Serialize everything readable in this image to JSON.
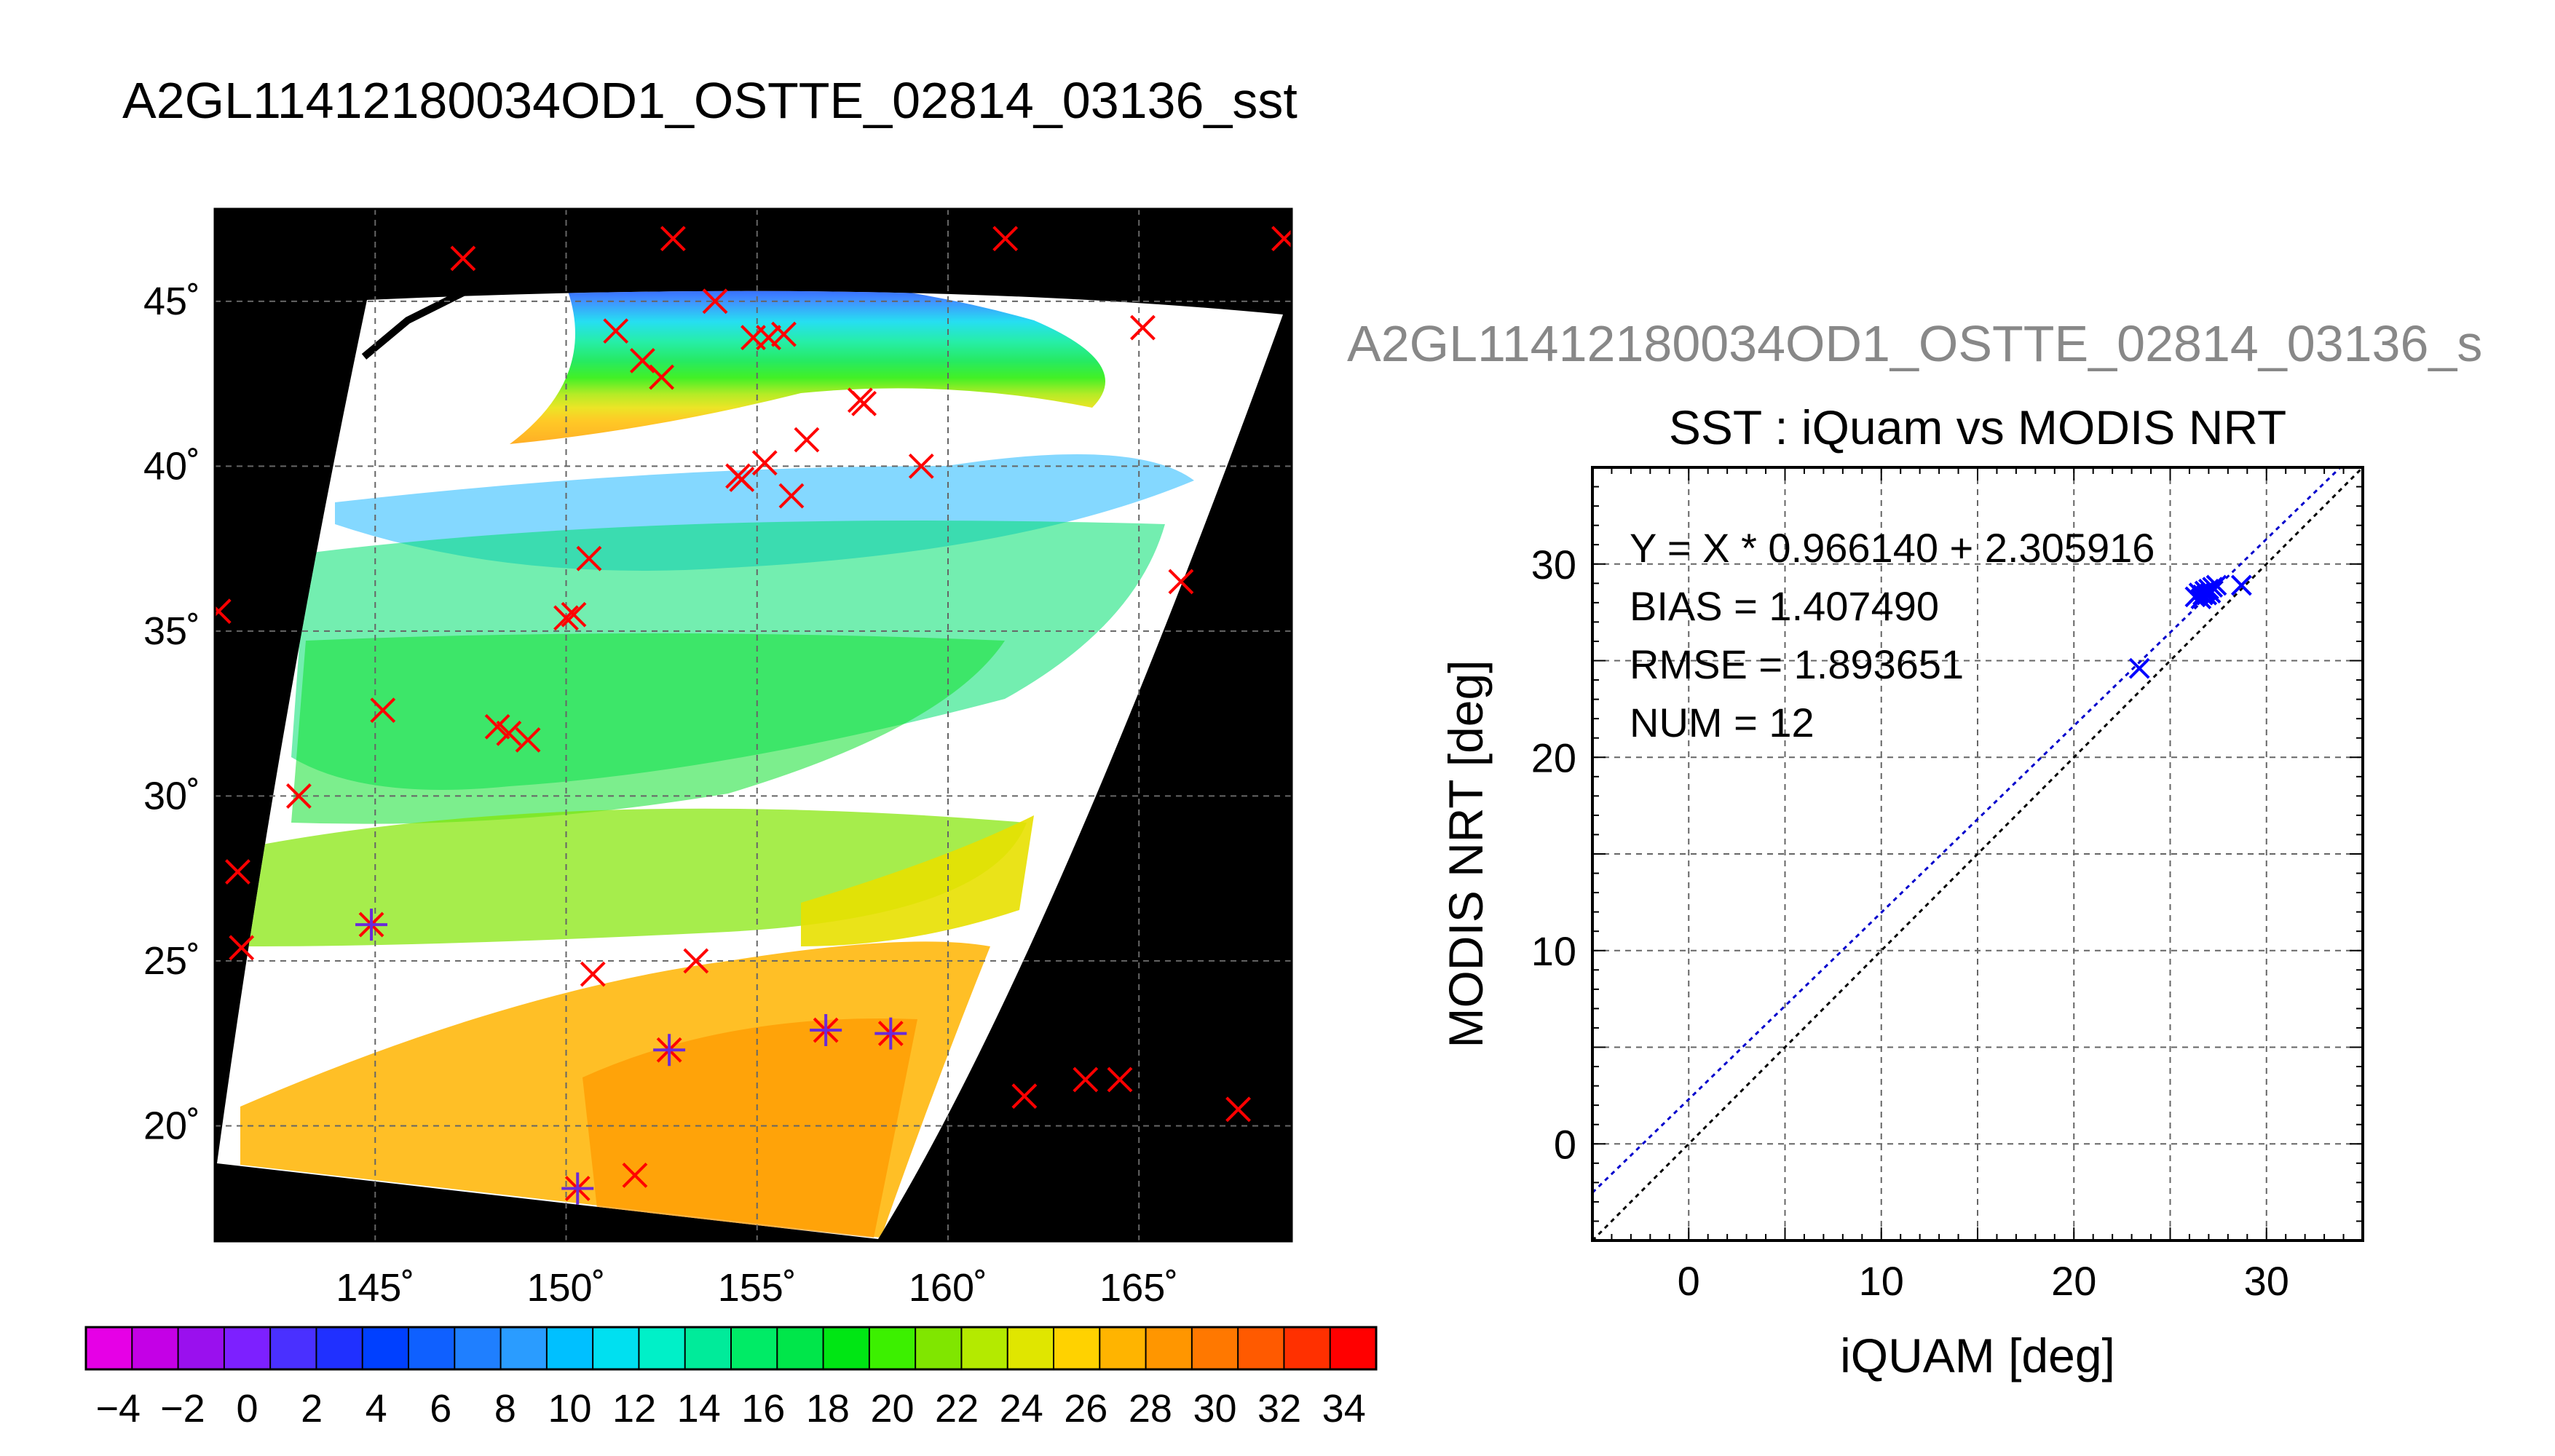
{
  "figure": {
    "title": "A2GL11412180034OD1_OSTTE_02814_03136_sst",
    "subtitle_clipped": "A2GL11412180034OD1_OSTTE_02814_03136_s"
  },
  "colors": {
    "map_background": "#000000",
    "grid": "#666666",
    "match_marker": "#ff0000",
    "iquam_marker": "#6a2bd9",
    "fit_line": "#0000cc",
    "one_to_one_line": "#000000",
    "scatter_marker": "#0000ff"
  },
  "chart_data": [
    {
      "type": "heatmap",
      "description_source": "map panel",
      "x_ticks": [
        "145˚",
        "150˚",
        "155˚",
        "160˚",
        "165˚"
      ],
      "x_tick_values": [
        145,
        150,
        155,
        160,
        165
      ],
      "y_ticks": [
        "20˚",
        "25˚",
        "30˚",
        "35˚",
        "40˚",
        "45˚"
      ],
      "y_tick_values": [
        20,
        25,
        30,
        35,
        40,
        45
      ],
      "xlim": [
        140.8,
        169.0
      ],
      "ylim": [
        16.5,
        47.8
      ],
      "grid": true,
      "sst_bands": [
        {
          "lat": 18.5,
          "value": 30
        },
        {
          "lat": 21.5,
          "value": 29
        },
        {
          "lat": 24.5,
          "value": 26
        },
        {
          "lat": 27.5,
          "value": 24
        },
        {
          "lat": 30.5,
          "value": 22
        },
        {
          "lat": 33.5,
          "value": 20
        },
        {
          "lat": 36.5,
          "value": 18
        },
        {
          "lat": 39.5,
          "value": 12
        },
        {
          "lat": 42.5,
          "value": 9
        },
        {
          "lat": 45.5,
          "value": 5
        }
      ],
      "match_points": [
        {
          "lon": 147.3,
          "lat": 46.3
        },
        {
          "lon": 152.8,
          "lat": 46.9
        },
        {
          "lon": 161.5,
          "lat": 46.9
        },
        {
          "lon": 168.8,
          "lat": 46.9
        },
        {
          "lon": 153.9,
          "lat": 45.0
        },
        {
          "lon": 151.3,
          "lat": 44.1
        },
        {
          "lon": 154.9,
          "lat": 43.9
        },
        {
          "lon": 155.3,
          "lat": 43.9
        },
        {
          "lon": 155.7,
          "lat": 44.0
        },
        {
          "lon": 165.1,
          "lat": 44.2
        },
        {
          "lon": 152.0,
          "lat": 43.2
        },
        {
          "lon": 152.5,
          "lat": 42.7
        },
        {
          "lon": 157.7,
          "lat": 42.0
        },
        {
          "lon": 157.8,
          "lat": 41.9
        },
        {
          "lon": 156.3,
          "lat": 40.8
        },
        {
          "lon": 155.2,
          "lat": 40.1
        },
        {
          "lon": 154.5,
          "lat": 39.7
        },
        {
          "lon": 154.6,
          "lat": 39.6
        },
        {
          "lon": 159.3,
          "lat": 40.0
        },
        {
          "lon": 155.9,
          "lat": 39.1
        },
        {
          "lon": 150.6,
          "lat": 37.2
        },
        {
          "lon": 166.1,
          "lat": 36.5
        },
        {
          "lon": 140.9,
          "lat": 35.6
        },
        {
          "lon": 150.0,
          "lat": 35.4
        },
        {
          "lon": 150.2,
          "lat": 35.5
        },
        {
          "lon": 145.2,
          "lat": 32.6
        },
        {
          "lon": 148.2,
          "lat": 32.1
        },
        {
          "lon": 148.5,
          "lat": 31.9
        },
        {
          "lon": 149.0,
          "lat": 31.7
        },
        {
          "lon": 143.0,
          "lat": 30.0
        },
        {
          "lon": 141.4,
          "lat": 27.7
        },
        {
          "lon": 141.5,
          "lat": 25.4
        },
        {
          "lon": 150.7,
          "lat": 24.6
        },
        {
          "lon": 153.4,
          "lat": 25.0
        },
        {
          "lon": 162.0,
          "lat": 20.9
        },
        {
          "lon": 163.6,
          "lat": 21.4
        },
        {
          "lon": 164.5,
          "lat": 21.4
        },
        {
          "lon": 167.6,
          "lat": 20.5
        },
        {
          "lon": 151.8,
          "lat": 18.5
        }
      ],
      "iquam_points": [
        {
          "lon": 144.9,
          "lat": 26.1
        },
        {
          "lon": 152.7,
          "lat": 22.3
        },
        {
          "lon": 156.8,
          "lat": 22.9
        },
        {
          "lon": 158.5,
          "lat": 22.8
        },
        {
          "lon": 150.3,
          "lat": 18.1
        }
      ]
    },
    {
      "type": "bar",
      "description_source": "colorbar",
      "colors": [
        "#e600e6",
        "#c400e6",
        "#9a10ee",
        "#7d20ff",
        "#4a30ff",
        "#2030ff",
        "#0040ff",
        "#0f60ff",
        "#1f7fff",
        "#2a9cff",
        "#00c0ff",
        "#00e0f0",
        "#00f0c8",
        "#00eb9a",
        "#00eb66",
        "#00e64a",
        "#00e614",
        "#3cf000",
        "#80e600",
        "#b4ea00",
        "#e0e600",
        "#ffd200",
        "#ffb400",
        "#ff9600",
        "#ff7800",
        "#ff5a00",
        "#ff3000",
        "#ff0000"
      ],
      "tick_labels": [
        "−4",
        "−2",
        "0",
        "2",
        "4",
        "6",
        "8",
        "10",
        "12",
        "14",
        "16",
        "18",
        "20",
        "22",
        "24",
        "26",
        "28",
        "30",
        "32",
        "34"
      ],
      "range": [
        -5,
        35
      ]
    },
    {
      "type": "scatter",
      "title": "SST : iQuam vs MODIS NRT",
      "xlabel": "iQUAM [deg]",
      "ylabel": "MODIS NRT [deg]",
      "xlim": [
        -5,
        35
      ],
      "ylim": [
        -5,
        35
      ],
      "x_ticks": [
        "0",
        "10",
        "20",
        "30"
      ],
      "x_tick_values": [
        0,
        10,
        20,
        30
      ],
      "y_ticks": [
        "0",
        "10",
        "20",
        "30"
      ],
      "y_tick_values": [
        0,
        10,
        20,
        30
      ],
      "grid": true,
      "stats": [
        "Y = X * 0.966140 + 2.305916",
        "BIAS = 1.407490",
        "RMSE = 1.893651",
        "NUM = 12"
      ],
      "fit": {
        "slope": 0.96614,
        "intercept": 2.305916
      },
      "points": [
        {
          "x": 23.4,
          "y": 24.6
        },
        {
          "x": 26.3,
          "y": 28.3
        },
        {
          "x": 26.5,
          "y": 28.5
        },
        {
          "x": 26.7,
          "y": 28.4
        },
        {
          "x": 26.8,
          "y": 28.6
        },
        {
          "x": 27.0,
          "y": 28.7
        },
        {
          "x": 27.2,
          "y": 28.8
        },
        {
          "x": 27.4,
          "y": 28.9
        },
        {
          "x": 27.1,
          "y": 28.5
        },
        {
          "x": 26.9,
          "y": 28.4
        },
        {
          "x": 28.7,
          "y": 28.9
        },
        {
          "x": 26.6,
          "y": 28.2
        }
      ]
    }
  ]
}
